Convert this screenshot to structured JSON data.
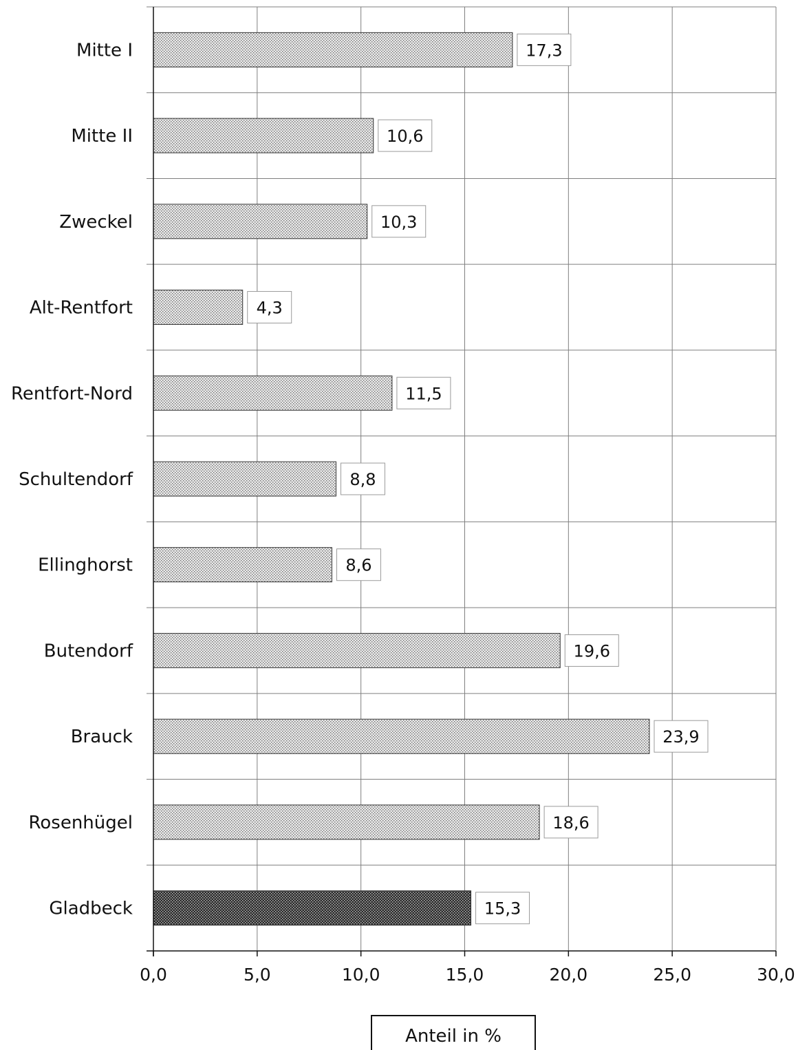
{
  "chart_data": {
    "type": "bar",
    "orientation": "horizontal",
    "categories": [
      "Mitte I",
      "Mitte II",
      "Zweckel",
      "Alt-Rentfort",
      "Rentfort-Nord",
      "Schultendorf",
      "Ellinghorst",
      "Butendorf",
      "Brauck",
      "Rosenhügel",
      "Gladbeck"
    ],
    "values": [
      17.3,
      10.6,
      10.3,
      4.3,
      11.5,
      8.8,
      8.6,
      19.6,
      23.9,
      18.6,
      15.3
    ],
    "value_labels": [
      "17,3",
      "10,6",
      "10,3",
      "4,3",
      "11,5",
      "8,8",
      "8,6",
      "19,6",
      "23,9",
      "18,6",
      "15,3"
    ],
    "highlight_category": "Gladbeck",
    "xlim": [
      0,
      30
    ],
    "xticks": [
      0,
      5,
      10,
      15,
      20,
      25,
      30
    ],
    "xtick_labels": [
      "0,0",
      "5,0",
      "10,0",
      "15,0",
      "20,0",
      "25,0",
      "30,0"
    ],
    "xlabel": "Anteil in %",
    "ylabel": "",
    "title": "",
    "grid": true,
    "legend": "none",
    "colors": {
      "bar_fill_light": "#d9d9d9",
      "bar_fill_dark": "#4a4a4a",
      "bar_stroke": "#333333",
      "grid": "#7f7f7f",
      "axis": "#111111",
      "label_box_stroke": "#9a9a9a"
    }
  }
}
